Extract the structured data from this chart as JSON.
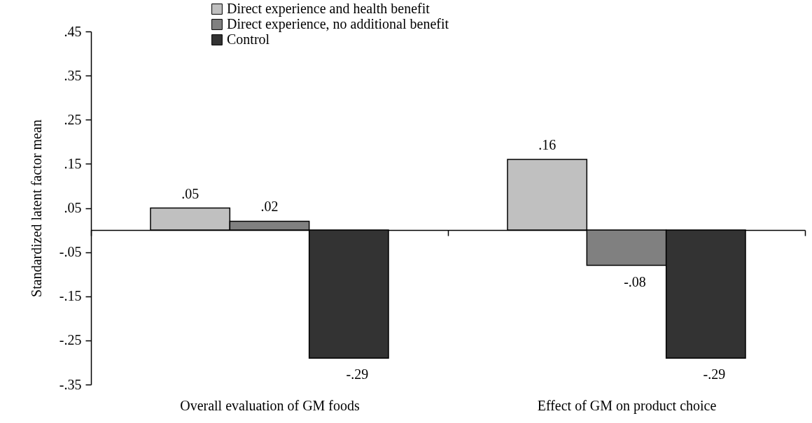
{
  "chart_data": {
    "type": "bar",
    "ylabel": "Standardized latent factor mean",
    "categories": [
      "Overall evaluation of GM foods",
      "Effect of GM on product choice"
    ],
    "series": [
      {
        "name": "Direct experience and health benefit",
        "color": "#c0c0c0",
        "values": [
          0.05,
          0.16
        ],
        "value_labels": [
          ".05",
          ".16"
        ]
      },
      {
        "name": "Direct experience, no additional benefit",
        "color": "#808080",
        "values": [
          0.02,
          -0.08
        ],
        "value_labels": [
          ".02",
          "-.08"
        ]
      },
      {
        "name": "Control",
        "color": "#333333",
        "values": [
          -0.29,
          -0.29
        ],
        "value_labels": [
          "-.29",
          "-.29"
        ]
      }
    ],
    "ylim": [
      -0.35,
      0.45
    ],
    "yticks": [
      {
        "value": -0.35,
        "label": "-.35"
      },
      {
        "value": -0.25,
        "label": "-.25"
      },
      {
        "value": -0.15,
        "label": "-.15"
      },
      {
        "value": -0.05,
        "label": "-.05"
      },
      {
        "value": 0.05,
        "label": ".05"
      },
      {
        "value": 0.15,
        "label": ".15"
      },
      {
        "value": 0.25,
        "label": ".25"
      },
      {
        "value": 0.35,
        "label": ".35"
      },
      {
        "value": 0.45,
        "label": ".45"
      }
    ],
    "grid": false,
    "legend": "top"
  }
}
